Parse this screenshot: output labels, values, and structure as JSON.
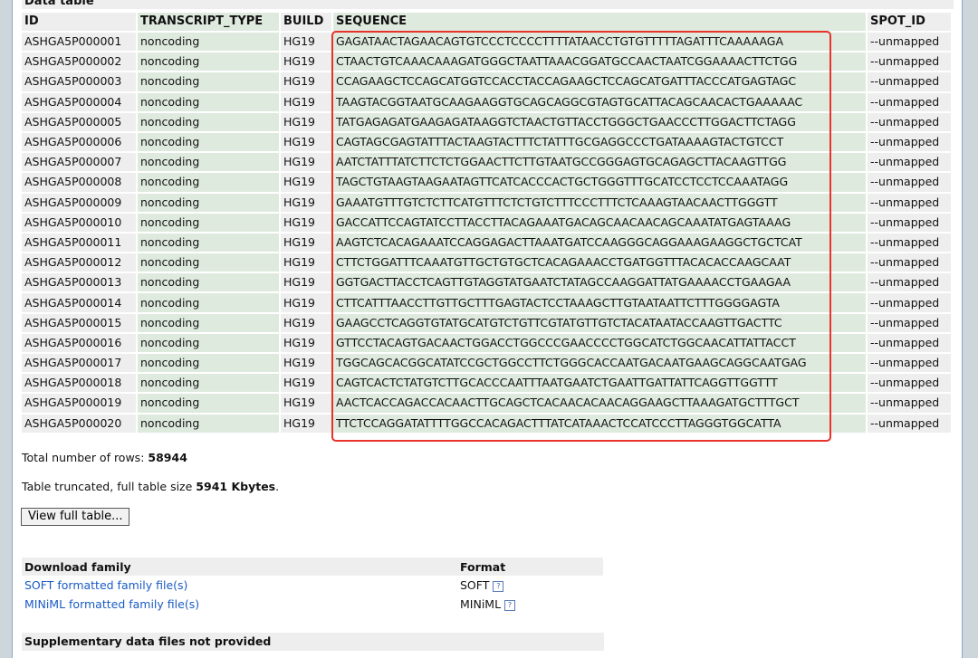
{
  "section_title": "Data table",
  "columns": [
    "ID",
    "TRANSCRIPT_TYPE",
    "BUILD",
    "SEQUENCE",
    "SPOT_ID"
  ],
  "rows": [
    [
      "ASHGA5P000001",
      "noncoding",
      "HG19",
      "GAGATAACTAGAACAGTGTCCCTCCCCTTTTATAACCTGTGTTTTTAGATTTCAAAAAGA",
      "--unmapped"
    ],
    [
      "ASHGA5P000002",
      "noncoding",
      "HG19",
      "CTAACTGTCAAACAAAGATGGGCTAATTAAACGGATGCCAACTAATCGGAAAACTTCTGG",
      "--unmapped"
    ],
    [
      "ASHGA5P000003",
      "noncoding",
      "HG19",
      "CCAGAAGCTCCAGCATGGTCCACCTACCAGAAGCTCCAGCATGATTTACCCATGAGTAGC",
      "--unmapped"
    ],
    [
      "ASHGA5P000004",
      "noncoding",
      "HG19",
      "TAAGTACGGTAATGCAAGAAGGTGCAGCAGGCGTAGTGCATTACAGCAACACTGAAAAAC",
      "--unmapped"
    ],
    [
      "ASHGA5P000005",
      "noncoding",
      "HG19",
      "TATGAGAGATGAAGAGATAAGGTCTAACTGTTACCTGGGCTGAACCCTTGGACTTCTAGG",
      "--unmapped"
    ],
    [
      "ASHGA5P000006",
      "noncoding",
      "HG19",
      "CAGTAGCGAGTATTTACTAAGTACTTTCTATTTGCGAGGCCCTGATAAAAGTACTGTCCT",
      "--unmapped"
    ],
    [
      "ASHGA5P000007",
      "noncoding",
      "HG19",
      "AATCTATTTATCTTCTCTGGAACTTCTTGTAATGCCGGGAGTGCAGAGCTTACAAGTTGG",
      "--unmapped"
    ],
    [
      "ASHGA5P000008",
      "noncoding",
      "HG19",
      "TAGCTGTAAGTAAGAATAGTTCATCACCCACTGCTGGGTTTGCATCCTCCTCCAAATAGG",
      "--unmapped"
    ],
    [
      "ASHGA5P000009",
      "noncoding",
      "HG19",
      "GAAATGTTTGTCTCTTCATGTTTCTCTGTCTTTCCCTTTCTCAAAGTAACAACTTGGGTT",
      "--unmapped"
    ],
    [
      "ASHGA5P000010",
      "noncoding",
      "HG19",
      "GACCATTCCAGTATCCTTACCTTACAGAAATGACAGCAACAACAGCAAATATGAGTAAAG",
      "--unmapped"
    ],
    [
      "ASHGA5P000011",
      "noncoding",
      "HG19",
      "AAGTCTCACAGAAATCCAGGAGACTTAAATGATCCAAGGGCAGGAAAGAAGGCTGCTCAT",
      "--unmapped"
    ],
    [
      "ASHGA5P000012",
      "noncoding",
      "HG19",
      "CTTCTGGATTTCAAATGTTGCTGTGCTCACAGAAACCTGATGGTTTACACACCAAGCAAT",
      "--unmapped"
    ],
    [
      "ASHGA5P000013",
      "noncoding",
      "HG19",
      "GGTGACTTACCTCAGTTGTAGGTATGAATCTATAGCCAAGGATTATGAAAACCTGAAGAA",
      "--unmapped"
    ],
    [
      "ASHGA5P000014",
      "noncoding",
      "HG19",
      "CTTCATTTAACCTTGTTGCTTTGAGTACTCCTAAAGCTTGTAATAATTCTTTGGGGAGTA",
      "--unmapped"
    ],
    [
      "ASHGA5P000015",
      "noncoding",
      "HG19",
      "GAAGCCTCAGGTGTATGCATGTCTGTTCGTATGTTGTCTACATAATACCAAGTTGACTTC",
      "--unmapped"
    ],
    [
      "ASHGA5P000016",
      "noncoding",
      "HG19",
      "GTTCCTACAGTGACAACTGGACCTGGCCCGAACCCCTGGCATCTGGCAACATTATTACCT",
      "--unmapped"
    ],
    [
      "ASHGA5P000017",
      "noncoding",
      "HG19",
      "TGGCAGCACGGCATATCCGCTGGCCTTCTGGGCACCAATGACAATGAAGCAGGCAATGAG",
      "--unmapped"
    ],
    [
      "ASHGA5P000018",
      "noncoding",
      "HG19",
      "CAGTCACTCTATGTCTTGCACCCAATTTAATGAATCTGAATTGATTATTCAGGTTGGTTT",
      "--unmapped"
    ],
    [
      "ASHGA5P000019",
      "noncoding",
      "HG19",
      "AACTCACCAGACCACAACTTGCAGCTCACAACACAACAGGAAGCTTAAAGATGCTTTGCT",
      "--unmapped"
    ],
    [
      "ASHGA5P000020",
      "noncoding",
      "HG19",
      "TTCTCCAGGATATTTTGGCCACAGACTTTATCATAAACTCCATCCCTTAGGGTGGCATTA",
      "--unmapped"
    ]
  ],
  "total_rows_label": "Total number of rows:",
  "total_rows_value": "58944",
  "truncated_label": "Table truncated, full table size",
  "truncated_value": "5941 Kbytes",
  "truncated_suffix": ".",
  "view_full_button": "View full table...",
  "download": {
    "header_family": "Download family",
    "header_format": "Format",
    "items": [
      {
        "link": "SOFT formatted family file(s)",
        "format": "SOFT",
        "help_icon": "question-icon"
      },
      {
        "link": "MINiML formatted family file(s)",
        "format": "MINiML",
        "help_icon": "question-icon"
      }
    ]
  },
  "supplementary": "Supplementary data files not provided",
  "colors": {
    "highlight": "#e8322a",
    "link": "#1a5bc4",
    "green_cell": "#dfeadf",
    "gray_cell": "#eeeeee"
  }
}
